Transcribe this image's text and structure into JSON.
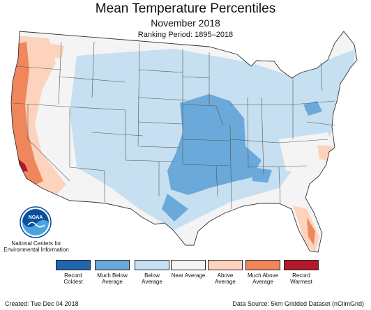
{
  "header": {
    "title": "Mean Temperature Percentiles",
    "subtitle": "November 2018",
    "ranking": "Ranking Period: 1895–2018"
  },
  "logo": {
    "icon": "noaa-logo-icon",
    "text": "NOAA",
    "org": "National Centers for Environmental Information"
  },
  "legend": {
    "items": [
      {
        "label": "Record Coldest",
        "color": "#2166ac"
      },
      {
        "label": "Much Below Average",
        "color": "#6aa9d9"
      },
      {
        "label": "Below Average",
        "color": "#c6dff1"
      },
      {
        "label": "Near Average",
        "color": "#f4f4f4"
      },
      {
        "label": "Above Average",
        "color": "#fdd3bd"
      },
      {
        "label": "Much Above Average",
        "color": "#f0875c"
      },
      {
        "label": "Record Warmest",
        "color": "#b2182b"
      }
    ]
  },
  "footer": {
    "created": "Created: Tue Dec 04 2018",
    "source": "Data Source: 5km Gridded Dataset (nClimGrid)"
  }
}
